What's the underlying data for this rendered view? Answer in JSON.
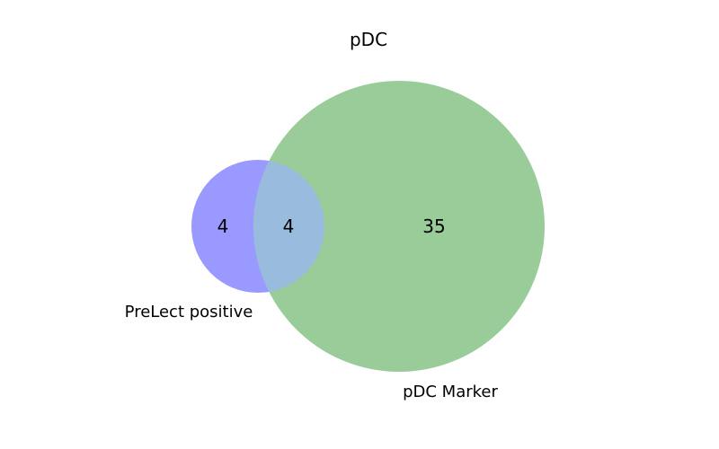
{
  "chart_data": {
    "type": "venn",
    "title": "pDC",
    "sets": [
      {
        "name": "PreLect positive",
        "color": "#9999ff"
      },
      {
        "name": "pDC Marker",
        "color": "#99cc99"
      }
    ],
    "overlap_color": "#99bbdd",
    "regions": {
      "only_a": 4,
      "both": 4,
      "only_b": 35
    }
  }
}
